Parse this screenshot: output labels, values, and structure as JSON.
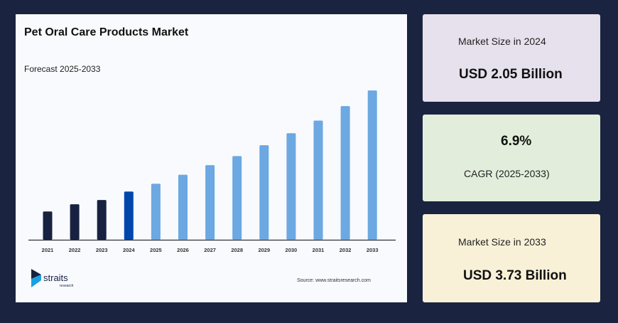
{
  "chart_data": {
    "type": "bar",
    "title": "Pet Oral Care Products Market",
    "subtitle": "Forecast 2025-2033",
    "categories": [
      "2021",
      "2022",
      "2023",
      "2024",
      "2025",
      "2026",
      "2027",
      "2028",
      "2029",
      "2030",
      "2031",
      "2032",
      "2033"
    ],
    "values": [
      1.72,
      1.84,
      1.91,
      2.05,
      2.18,
      2.33,
      2.49,
      2.64,
      2.82,
      3.02,
      3.23,
      3.47,
      3.73
    ],
    "unit": "USD Billion",
    "ylim": [
      1.25,
      3.85
    ],
    "grid": false,
    "colors": {
      "historical": "#172240",
      "base_year": "#0047ab",
      "forecast": "#6ca8e2",
      "axis": "#333333"
    }
  },
  "source": "Source: www.straitsresearch.com",
  "logo": {
    "name": "straits",
    "sub": "research"
  },
  "cards": [
    {
      "label": "Market Size in 2024",
      "value": "USD 2.05 Billion",
      "color": "#e6e1ec"
    },
    {
      "label": "CAGR (2025-2033)",
      "value": "6.9%",
      "color": "#e2eedb"
    },
    {
      "label": "Market Size in 2033",
      "value": "USD 3.73 Billion",
      "color": "#f8f1d8"
    }
  ]
}
